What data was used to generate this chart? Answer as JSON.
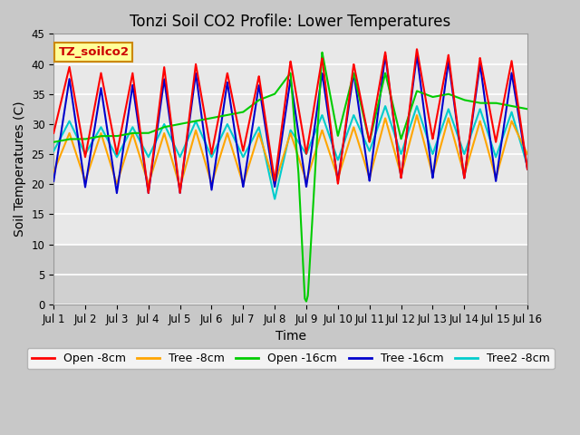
{
  "title": "Tonzi Soil CO2 Profile: Lower Temperatures",
  "xlabel": "Time",
  "ylabel": "Soil Temperatures (C)",
  "label_box": "TZ_soilco2",
  "ylim": [
    0,
    45
  ],
  "xlim": [
    0,
    15
  ],
  "xtick_labels": [
    "Jul 1",
    "Jul 2",
    "Jul 3",
    "Jul 4",
    "Jul 5",
    "Jul 6",
    "Jul 7",
    "Jul 8",
    "Jul 9",
    "Jul 10",
    "Jul 11",
    "Jul 12",
    "Jul 13",
    "Jul 14",
    "Jul 15",
    "Jul 16"
  ],
  "ytick_vals": [
    0,
    5,
    10,
    15,
    20,
    25,
    30,
    35,
    40,
    45
  ],
  "fig_facecolor": "#c8c8c8",
  "ax_facecolor": "#e8e8e8",
  "grid_color": "#ffffff",
  "lower_band_color": "#d0d0d0",
  "series": {
    "open_8cm": {
      "label": "Open -8cm",
      "color": "#ff0000",
      "lw": 1.5
    },
    "tree_8cm": {
      "label": "Tree -8cm",
      "color": "#ffa500",
      "lw": 1.5
    },
    "open_16cm": {
      "label": "Open -16cm",
      "color": "#00cc00",
      "lw": 1.5
    },
    "tree_16cm": {
      "label": "Tree -16cm",
      "color": "#0000cc",
      "lw": 1.5
    },
    "tree2_8cm": {
      "label": "Tree2 -8cm",
      "color": "#00cccc",
      "lw": 1.5
    }
  },
  "title_fontsize": 12,
  "axis_label_fontsize": 10,
  "tick_fontsize": 8.5,
  "legend_fontsize": 9
}
